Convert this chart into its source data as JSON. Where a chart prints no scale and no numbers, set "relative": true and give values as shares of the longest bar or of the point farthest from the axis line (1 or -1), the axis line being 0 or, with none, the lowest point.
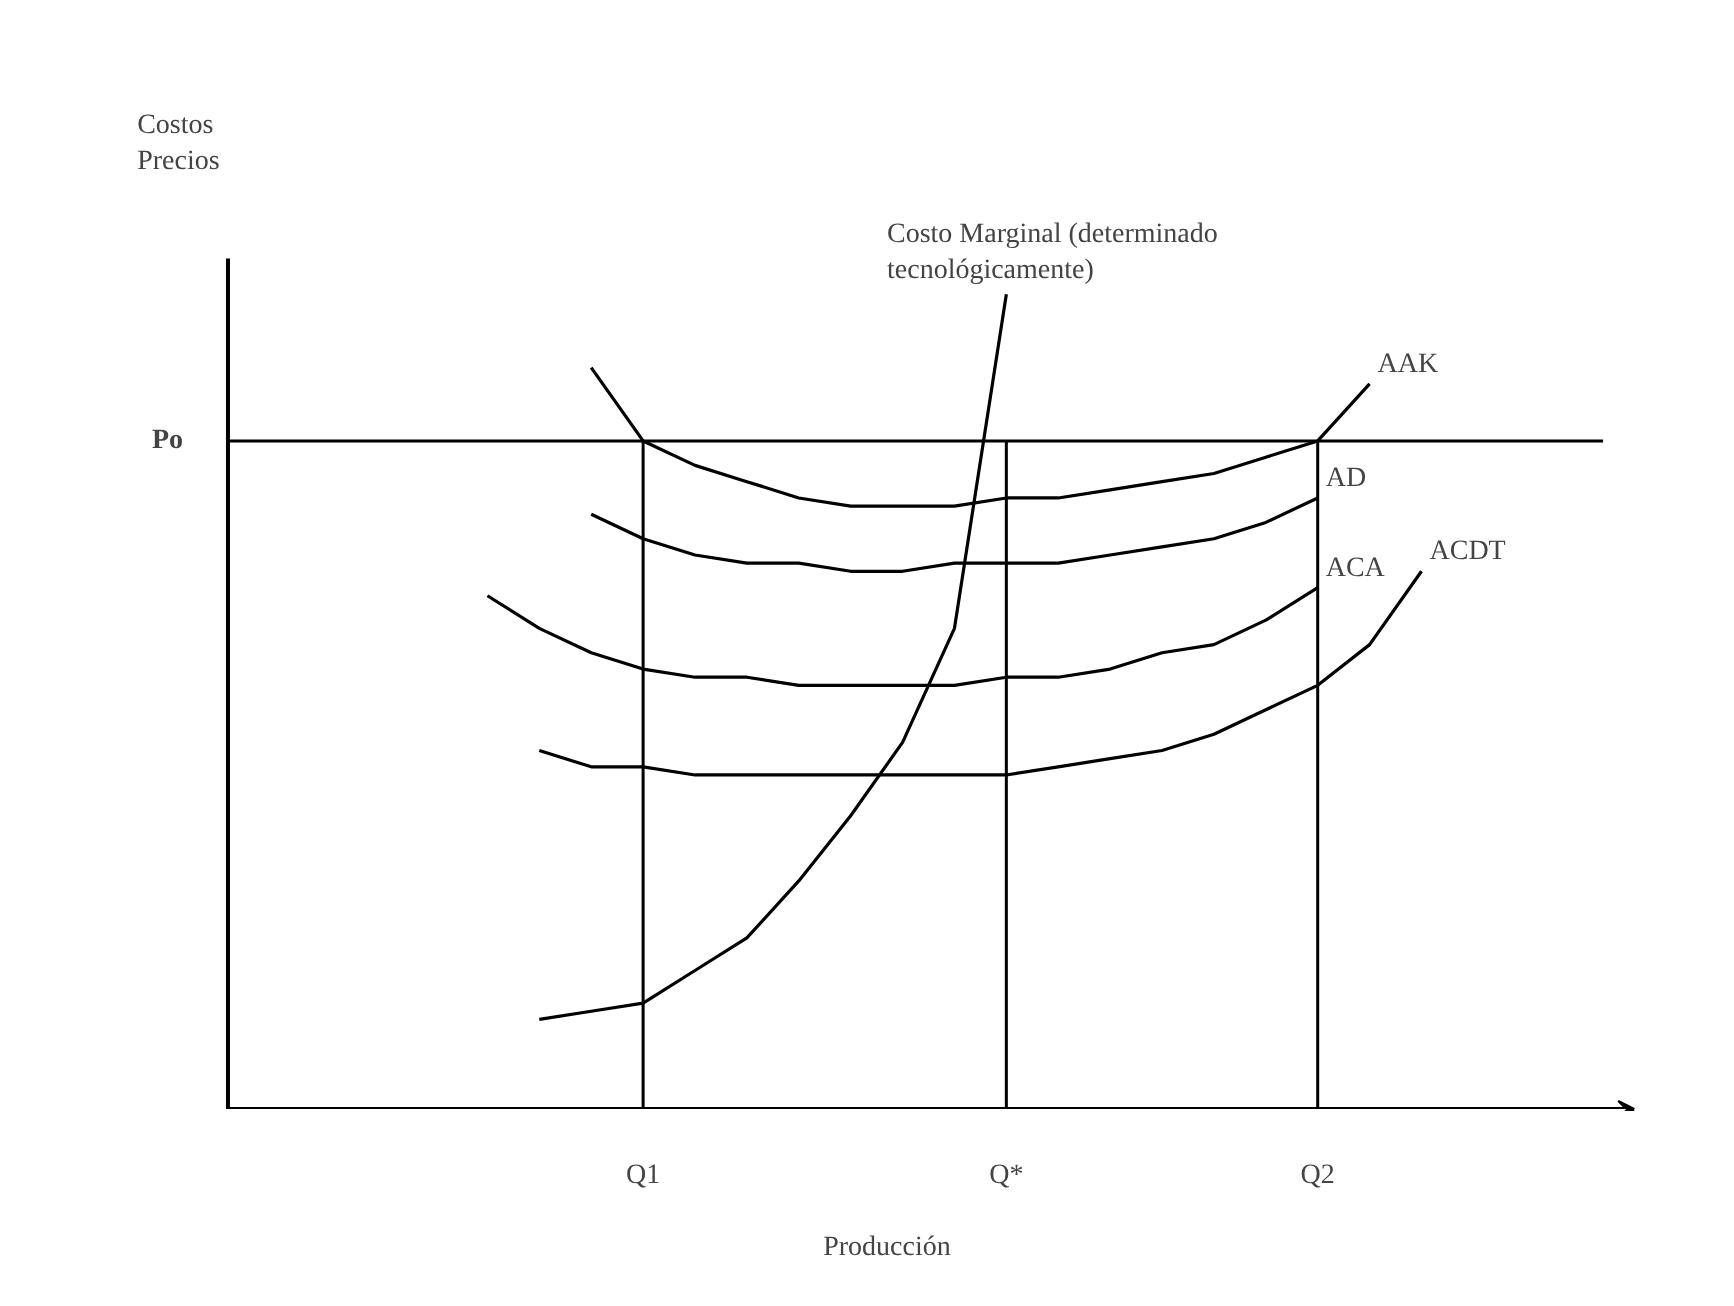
{
  "chart_data": {
    "type": "line",
    "relative": true,
    "legend": false,
    "grid": false,
    "marker": "none",
    "line_style": "solid",
    "ylabel": "Costos Precios",
    "xlabel": "Producción",
    "categories": [
      null,
      null,
      null,
      null,
      null,
      null,
      null,
      null,
      "Q1",
      null,
      null,
      null,
      null,
      null,
      null,
      "Q*",
      null,
      null,
      null,
      null,
      null,
      "Q2",
      null,
      null
    ],
    "series": [
      {
        "name": "Costo Marginal (determinado tecnológicamente)",
        "color": "#000000",
        "values": [
          null,
          null,
          null,
          null,
          null,
          null,
          0.11,
          0.12,
          0.13,
          0.17,
          0.21,
          0.28,
          0.36,
          0.45,
          0.59,
          1.0,
          null,
          null,
          null,
          null,
          null,
          null,
          null,
          null
        ]
      },
      {
        "name": "AAK",
        "color": "#000000",
        "values": [
          null,
          null,
          null,
          null,
          null,
          null,
          null,
          0.91,
          0.82,
          0.79,
          0.77,
          0.75,
          0.74,
          0.74,
          0.74,
          0.75,
          0.75,
          0.76,
          0.77,
          0.78,
          0.8,
          0.82,
          0.89,
          null
        ]
      },
      {
        "name": "AD",
        "color": "#000000",
        "values": [
          null,
          null,
          null,
          null,
          null,
          null,
          null,
          0.73,
          0.7,
          0.68,
          0.67,
          0.67,
          0.66,
          0.66,
          0.67,
          0.67,
          0.67,
          0.68,
          0.69,
          0.7,
          0.72,
          0.75,
          null,
          null
        ]
      },
      {
        "name": "ACA",
        "color": "#000000",
        "values": [
          null,
          null,
          null,
          null,
          null,
          0.63,
          0.59,
          0.56,
          0.54,
          0.53,
          0.53,
          0.52,
          0.52,
          0.52,
          0.52,
          0.53,
          0.53,
          0.54,
          0.56,
          0.57,
          0.6,
          0.64,
          null,
          null
        ]
      },
      {
        "name": "ACDT",
        "color": "#000000",
        "values": [
          null,
          null,
          null,
          null,
          null,
          null,
          0.44,
          0.42,
          0.42,
          0.41,
          0.41,
          0.41,
          0.41,
          0.41,
          0.41,
          0.41,
          0.42,
          0.43,
          0.44,
          0.46,
          0.49,
          0.52,
          0.57,
          0.66
        ]
      }
    ],
    "ref_lines": [
      {
        "axis": "y",
        "value": 0.82,
        "label": "Po",
        "color": "#000000"
      },
      {
        "axis": "x",
        "value": "Q1",
        "label": null,
        "color": "#000000"
      },
      {
        "axis": "x",
        "value": "Q*",
        "label": null,
        "color": "#000000"
      },
      {
        "axis": "x",
        "value": "Q2",
        "label": null,
        "color": "#000000"
      }
    ]
  }
}
